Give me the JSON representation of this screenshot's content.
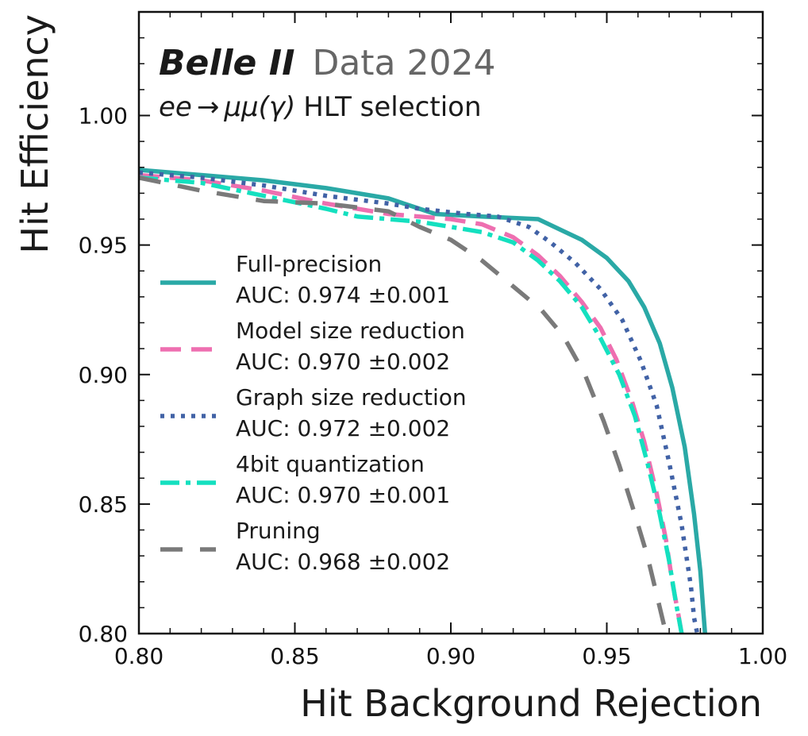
{
  "chart_data": {
    "type": "line",
    "xlabel": "Hit Background Rejection",
    "ylabel": "Hit Efficiency",
    "xlim": [
      0.8,
      1.0
    ],
    "ylim": [
      0.8,
      1.04
    ],
    "x_ticks": [
      "0.80",
      "0.85",
      "0.90",
      "0.95",
      "1.00"
    ],
    "y_ticks": [
      "0.80",
      "0.85",
      "0.90",
      "0.95",
      "1.00"
    ],
    "grid": false,
    "legend_position": "center-left",
    "brand": "Belle II",
    "brand_sub": "Data 2024",
    "selection": {
      "prefix": "ee",
      "arrow": "→",
      "particles": "μμ(γ)",
      "suffix": "HLT selection"
    },
    "series": [
      {
        "name": "Full-precision",
        "auc": "AUC: 0.974 ±0.001",
        "color": "#2aa9a6",
        "style": "solid",
        "points": [
          [
            0.8,
            0.979
          ],
          [
            0.82,
            0.977
          ],
          [
            0.84,
            0.975
          ],
          [
            0.86,
            0.972
          ],
          [
            0.88,
            0.968
          ],
          [
            0.895,
            0.962
          ],
          [
            0.91,
            0.961
          ],
          [
            0.928,
            0.96
          ],
          [
            0.935,
            0.956
          ],
          [
            0.942,
            0.952
          ],
          [
            0.95,
            0.945
          ],
          [
            0.957,
            0.936
          ],
          [
            0.962,
            0.926
          ],
          [
            0.967,
            0.912
          ],
          [
            0.971,
            0.895
          ],
          [
            0.975,
            0.872
          ],
          [
            0.978,
            0.846
          ],
          [
            0.98,
            0.824
          ],
          [
            0.981,
            0.808
          ],
          [
            0.9815,
            0.8
          ]
        ]
      },
      {
        "name": "Model size reduction",
        "auc": "AUC: 0.970 ±0.002",
        "color": "#ee6fb0",
        "style": "dashed",
        "points": [
          [
            0.8,
            0.977
          ],
          [
            0.82,
            0.975
          ],
          [
            0.84,
            0.971
          ],
          [
            0.86,
            0.966
          ],
          [
            0.88,
            0.962
          ],
          [
            0.9,
            0.96
          ],
          [
            0.91,
            0.958
          ],
          [
            0.92,
            0.953
          ],
          [
            0.928,
            0.946
          ],
          [
            0.935,
            0.938
          ],
          [
            0.942,
            0.928
          ],
          [
            0.948,
            0.918
          ],
          [
            0.953,
            0.906
          ],
          [
            0.958,
            0.89
          ],
          [
            0.962,
            0.874
          ],
          [
            0.966,
            0.854
          ],
          [
            0.969,
            0.836
          ],
          [
            0.971,
            0.82
          ],
          [
            0.973,
            0.807
          ],
          [
            0.974,
            0.8
          ]
        ]
      },
      {
        "name": "Graph size reduction",
        "auc": "AUC: 0.972 ±0.002",
        "color": "#4162a6",
        "style": "dotted",
        "points": [
          [
            0.8,
            0.978
          ],
          [
            0.82,
            0.976
          ],
          [
            0.84,
            0.973
          ],
          [
            0.86,
            0.969
          ],
          [
            0.88,
            0.966
          ],
          [
            0.89,
            0.964
          ],
          [
            0.905,
            0.962
          ],
          [
            0.915,
            0.961
          ],
          [
            0.925,
            0.957
          ],
          [
            0.932,
            0.951
          ],
          [
            0.94,
            0.943
          ],
          [
            0.948,
            0.933
          ],
          [
            0.955,
            0.921
          ],
          [
            0.961,
            0.905
          ],
          [
            0.966,
            0.888
          ],
          [
            0.97,
            0.866
          ],
          [
            0.974,
            0.842
          ],
          [
            0.977,
            0.818
          ],
          [
            0.978,
            0.806
          ],
          [
            0.979,
            0.8
          ]
        ]
      },
      {
        "name": "4bit quantization",
        "auc": "AUC: 0.970 ±0.001",
        "color": "#14e0bf",
        "style": "dashdot",
        "points": [
          [
            0.8,
            0.976
          ],
          [
            0.82,
            0.974
          ],
          [
            0.84,
            0.969
          ],
          [
            0.86,
            0.964
          ],
          [
            0.87,
            0.961
          ],
          [
            0.89,
            0.959
          ],
          [
            0.9,
            0.957
          ],
          [
            0.91,
            0.955
          ],
          [
            0.92,
            0.951
          ],
          [
            0.928,
            0.944
          ],
          [
            0.935,
            0.936
          ],
          [
            0.942,
            0.926
          ],
          [
            0.948,
            0.914
          ],
          [
            0.954,
            0.9
          ],
          [
            0.959,
            0.884
          ],
          [
            0.963,
            0.866
          ],
          [
            0.967,
            0.846
          ],
          [
            0.97,
            0.828
          ],
          [
            0.972,
            0.813
          ],
          [
            0.974,
            0.8
          ]
        ]
      },
      {
        "name": "Pruning",
        "auc": "AUC: 0.968 ±0.002",
        "color": "#7a7a7a",
        "style": "longdash",
        "points": [
          [
            0.8,
            0.976
          ],
          [
            0.82,
            0.971
          ],
          [
            0.84,
            0.967
          ],
          [
            0.86,
            0.966
          ],
          [
            0.88,
            0.963
          ],
          [
            0.89,
            0.957
          ],
          [
            0.9,
            0.952
          ],
          [
            0.91,
            0.944
          ],
          [
            0.92,
            0.934
          ],
          [
            0.929,
            0.925
          ],
          [
            0.936,
            0.915
          ],
          [
            0.943,
            0.9
          ],
          [
            0.949,
            0.882
          ],
          [
            0.954,
            0.865
          ],
          [
            0.959,
            0.846
          ],
          [
            0.963,
            0.83
          ],
          [
            0.966,
            0.815
          ],
          [
            0.968,
            0.805
          ],
          [
            0.969,
            0.8
          ]
        ]
      }
    ]
  }
}
